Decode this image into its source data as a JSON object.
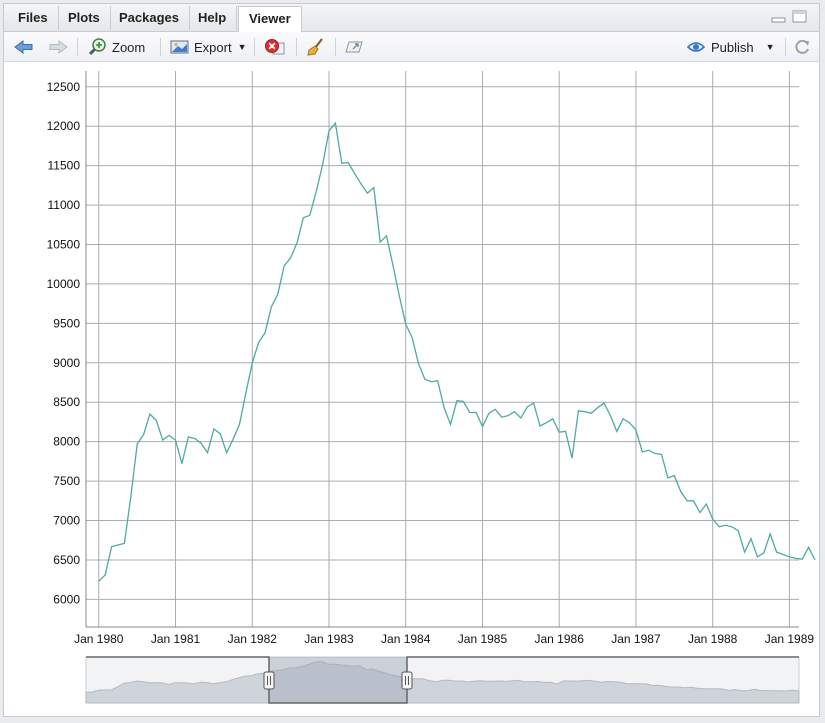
{
  "tabs": [
    {
      "label": "Files"
    },
    {
      "label": "Plots"
    },
    {
      "label": "Packages"
    },
    {
      "label": "Help"
    },
    {
      "label": "Viewer"
    }
  ],
  "active_tab": "Viewer",
  "toolbar": {
    "zoom_label": "Zoom",
    "export_label": "Export",
    "publish_label": "Publish"
  },
  "icons": [
    "back-arrow-icon",
    "forward-arrow-icon",
    "zoom-icon",
    "export-icon",
    "remove-plot-icon",
    "clear-broom-icon",
    "popout-icon",
    "publish-icon",
    "refresh-icon",
    "minimize-icon",
    "maximize-icon"
  ],
  "colors": {
    "series": "#4fa9a5",
    "grid": "#a9acb1",
    "range_fill": "#9ea7b9"
  },
  "chart_data": {
    "type": "line",
    "title": "",
    "xlabel": "",
    "ylabel": "",
    "x_start": "1980-01",
    "x_step": "month",
    "xlim": [
      "1979-11",
      "1989-02"
    ],
    "ylim": [
      5650,
      12700
    ],
    "y_ticks": [
      6000,
      6500,
      7000,
      7500,
      8000,
      8500,
      9000,
      9500,
      10000,
      10500,
      11000,
      11500,
      12000,
      12500
    ],
    "x_tick_labels": [
      "Jan 1980",
      "Jan 1981",
      "Jan 1982",
      "Jan 1983",
      "Jan 1984",
      "Jan 1985",
      "Jan 1986",
      "Jan 1987",
      "Jan 1988",
      "Jan 1989"
    ],
    "grid": true,
    "range_selector": true,
    "series": [
      {
        "values": [
          6230,
          6310,
          6670,
          6690,
          6710,
          7300,
          7970,
          8090,
          8350,
          8270,
          8020,
          8080,
          8020,
          7720,
          8060,
          8040,
          7980,
          7860,
          8160,
          8100,
          7860,
          8030,
          8220,
          8620,
          9000,
          9260,
          9380,
          9710,
          9870,
          10230,
          10330,
          10520,
          10840,
          10870,
          11170,
          11510,
          11940,
          12040,
          11530,
          11540,
          11400,
          11270,
          11150,
          11220,
          10530,
          10610,
          10240,
          9850,
          9490,
          9320,
          8990,
          8790,
          8760,
          8770,
          8430,
          8220,
          8520,
          8510,
          8370,
          8370,
          8190,
          8360,
          8410,
          8310,
          8330,
          8380,
          8300,
          8440,
          8490,
          8200,
          8240,
          8290,
          8120,
          8130,
          7790,
          8390,
          8380,
          8360,
          8430,
          8490,
          8330,
          8130,
          8290,
          8240,
          8150,
          7870,
          7890,
          7850,
          7840,
          7540,
          7570,
          7370,
          7250,
          7250,
          7100,
          7210,
          7020,
          6920,
          6940,
          6920,
          6870,
          6600,
          6770,
          6540,
          6590,
          6830,
          6600,
          6570,
          6540,
          6520,
          6510,
          6660,
          6500
        ]
      }
    ]
  }
}
